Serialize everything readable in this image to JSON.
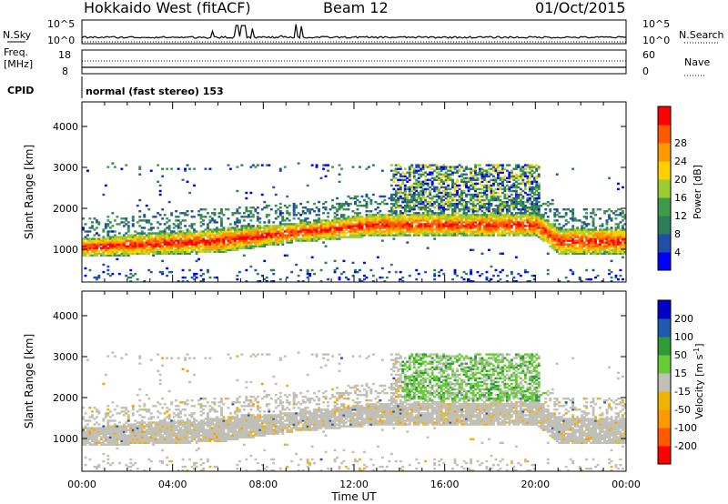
{
  "header": {
    "station": "Hokkaido West (fitACF)",
    "beam": "Beam 12",
    "date": "01/Oct/2015"
  },
  "params": {
    "nsky_label": "N.Sky",
    "nsky_scale_top": "10^5",
    "nsky_scale_bottom": "10^0",
    "nsearch_label": "N.Search",
    "freq_label_line1": "Freq.",
    "freq_label_line2": "[MHz]",
    "freq_tick_top": "18",
    "freq_tick_bottom": "8",
    "nave_label": "Nave",
    "nave_tick_top": "60",
    "nave_tick_bottom": "0",
    "cpid_label": "CPID",
    "cpid_value": "normal (fast stereo) 153"
  },
  "colors": {
    "power_scale": [
      "#0000ff",
      "#1f4fa8",
      "#2e7d5b",
      "#3f9a4a",
      "#9acd32",
      "#ffd000",
      "#ff9900",
      "#ff5a00",
      "#ff0000"
    ],
    "velocity_scale": [
      "#ff0000",
      "#ff5a00",
      "#ff9900",
      "#f0b400",
      "#c0c0b8",
      "#66cc33",
      "#2e9a3a",
      "#1f5ab0",
      "#0000c8"
    ]
  },
  "chart_data": [
    {
      "type": "heatmap",
      "name": "power",
      "ylabel": "Slant Range [km]",
      "xlabel": "Time UT",
      "xlim_hours": [
        0,
        24
      ],
      "ylim": [
        200,
        4600
      ],
      "x_ticks": [
        "00:00",
        "04:00",
        "08:00",
        "12:00",
        "16:00",
        "20:00",
        "00:00"
      ],
      "y_ticks": [
        1000,
        2000,
        3000,
        4000
      ],
      "colorbar": {
        "label": "Power [dB]",
        "ticks": [
          "4",
          "8",
          "12",
          "16",
          "20",
          "24",
          "28"
        ],
        "range": [
          0,
          30
        ]
      },
      "approx_bands": [
        {
          "description": "strong scatter",
          "hours": [
            0,
            24
          ],
          "range_km": [
            700,
            1500
          ],
          "power_db": 24
        },
        {
          "description": "upper band",
          "hours": [
            13,
            21
          ],
          "range_km": [
            1800,
            3100
          ],
          "power_db": 14
        }
      ]
    },
    {
      "type": "heatmap",
      "name": "velocity",
      "ylabel": "Slant Range [km]",
      "xlabel": "Time UT",
      "xlim_hours": [
        0,
        24
      ],
      "ylim": [
        200,
        4600
      ],
      "x_ticks": [
        "00:00",
        "04:00",
        "08:00",
        "12:00",
        "16:00",
        "20:00",
        "00:00"
      ],
      "y_ticks": [
        1000,
        2000,
        3000,
        4000
      ],
      "colorbar": {
        "label": "Velocity [m s^-1]",
        "ticks": [
          "200",
          "100",
          "50",
          "15",
          "-15",
          "-50",
          "-100",
          "-200"
        ],
        "range": [
          -250,
          250
        ]
      }
    }
  ]
}
